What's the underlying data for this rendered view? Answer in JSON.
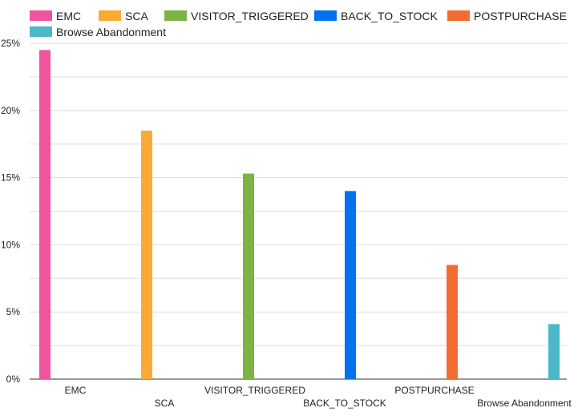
{
  "chart_data": {
    "type": "bar",
    "title": "",
    "xlabel": "",
    "ylabel": "",
    "categories": [
      "EMC",
      "SCA",
      "VISITOR_TRIGGERED",
      "BACK_TO_STOCK",
      "POSTPURCHASE",
      "Browse Abandonment"
    ],
    "values": [
      24.5,
      18.5,
      15.3,
      14.0,
      8.5,
      4.1
    ],
    "colors": [
      "#EF559F",
      "#F9AA34",
      "#7CB342",
      "#0072F0",
      "#F26C31",
      "#4CB7C9"
    ],
    "yticks": [
      "0%",
      "5%",
      "10%",
      "15%",
      "20%",
      "25%"
    ],
    "ytick_values": [
      0,
      5,
      10,
      15,
      20,
      25
    ],
    "ylim": [
      0,
      25
    ],
    "grid": true,
    "legend_position": "top-left",
    "legend": [
      "EMC",
      "SCA",
      "VISITOR_TRIGGERED",
      "BACK_TO_STOCK",
      "POSTPURCHASE",
      "Browse Abandonment"
    ]
  }
}
